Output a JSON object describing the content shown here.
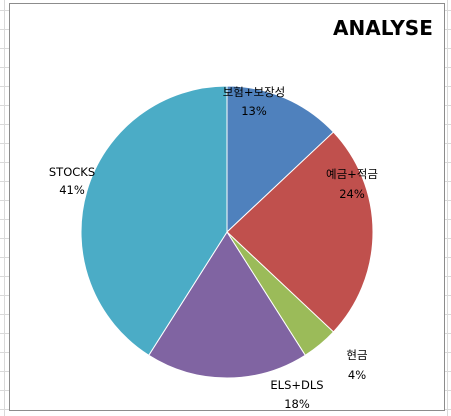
{
  "chart_data": {
    "type": "pie",
    "title": "ANALYSE",
    "start_angle_deg": 0,
    "direction": "clockwise",
    "slices": [
      {
        "label": "보험+보장성",
        "value": 13,
        "percent_label": "13%",
        "color": "#4f81bd"
      },
      {
        "label": "예금+적금",
        "value": 24,
        "percent_label": "24%",
        "color": "#c0504d"
      },
      {
        "label": "현금",
        "value": 4,
        "percent_label": "4%",
        "color": "#9bbb59"
      },
      {
        "label": "ELS+DLS",
        "value": 18,
        "percent_label": "18%",
        "color": "#8064a2"
      },
      {
        "label": "STOCKS",
        "value": 41,
        "percent_label": "41%",
        "color": "#4bacc6"
      }
    ],
    "legend": "none",
    "data_labels": "category name and percentage, outside end"
  }
}
